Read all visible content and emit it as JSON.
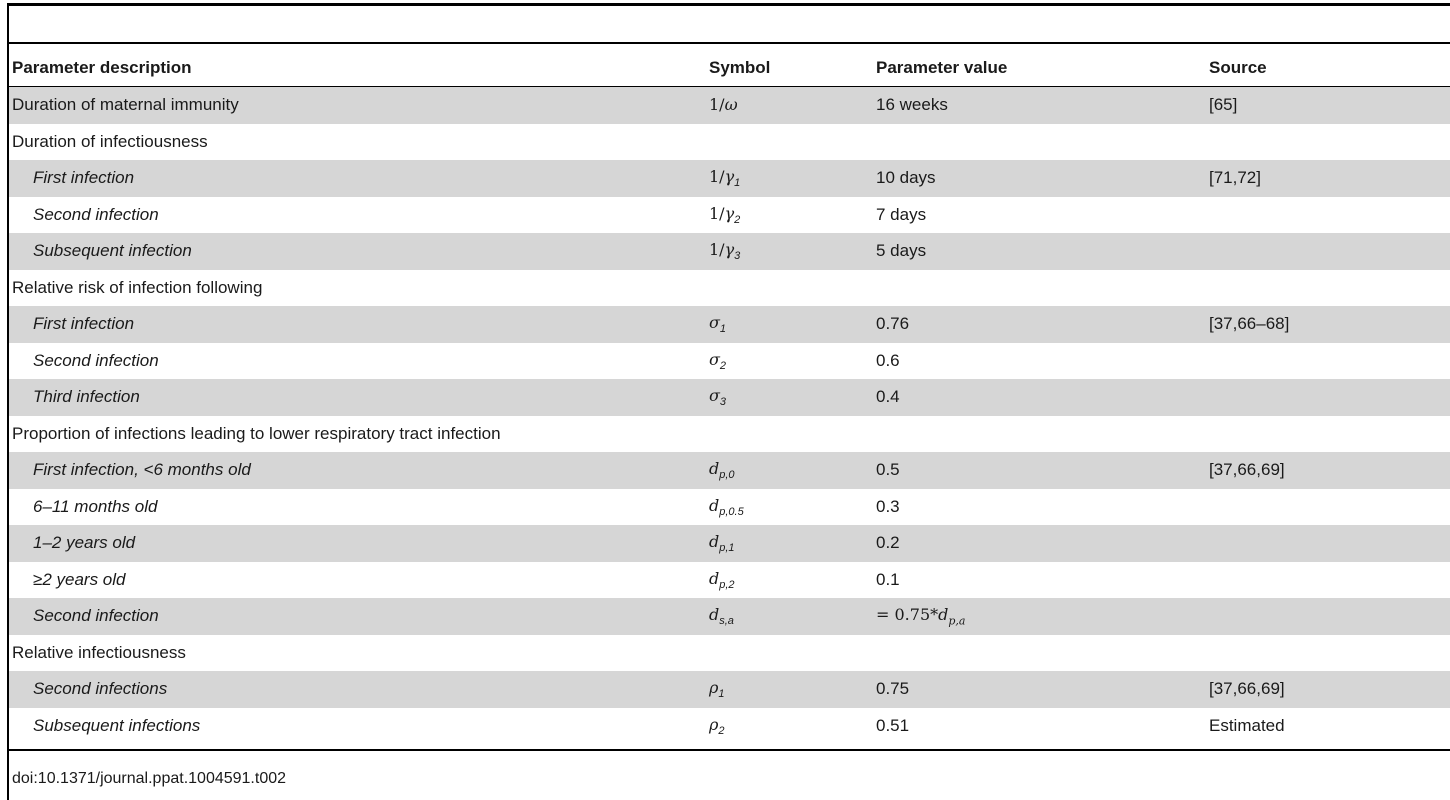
{
  "table": {
    "headers": [
      "Parameter description",
      "Symbol",
      "Parameter value",
      "Source"
    ],
    "rows": [
      {
        "description": "Duration of maternal immunity",
        "symbol_base": "ω",
        "symbol_prefix": "1/",
        "symbol_sub": "",
        "value": "16 weeks",
        "source": "[65]",
        "indent": false,
        "shaded": true
      },
      {
        "description": "Duration of infectiousness",
        "symbol_base": "",
        "symbol_prefix": "",
        "symbol_sub": "",
        "value": "",
        "source": "",
        "indent": false,
        "shaded": false
      },
      {
        "description": "First infection",
        "symbol_base": "γ",
        "symbol_prefix": "1/",
        "symbol_sub": "1",
        "value": "10 days",
        "source": "[71,72]",
        "indent": true,
        "shaded": true
      },
      {
        "description": "Second infection",
        "symbol_base": "γ",
        "symbol_prefix": "1/",
        "symbol_sub": "2",
        "value": "7 days",
        "source": "",
        "indent": true,
        "shaded": false
      },
      {
        "description": "Subsequent infection",
        "symbol_base": "γ",
        "symbol_prefix": "1/",
        "symbol_sub": "3",
        "value": "5 days",
        "source": "",
        "indent": true,
        "shaded": true
      },
      {
        "description": "Relative risk of infection following",
        "symbol_base": "",
        "symbol_prefix": "",
        "symbol_sub": "",
        "value": "",
        "source": "",
        "indent": false,
        "shaded": false
      },
      {
        "description": "First infection",
        "symbol_base": "σ",
        "symbol_prefix": "",
        "symbol_sub": "1",
        "value": "0.76",
        "source": "[37,66–68]",
        "indent": true,
        "shaded": true
      },
      {
        "description": "Second infection",
        "symbol_base": "σ",
        "symbol_prefix": "",
        "symbol_sub": "2",
        "value": "0.6",
        "source": "",
        "indent": true,
        "shaded": false
      },
      {
        "description": "Third infection",
        "symbol_base": "σ",
        "symbol_prefix": "",
        "symbol_sub": "3",
        "value": "0.4",
        "source": "",
        "indent": true,
        "shaded": true
      },
      {
        "description": "Proportion of infections leading to lower respiratory tract infection",
        "symbol_base": "",
        "symbol_prefix": "",
        "symbol_sub": "",
        "value": "",
        "source": "",
        "indent": false,
        "shaded": false
      },
      {
        "description": "First infection, <6 months old",
        "symbol_base": "d",
        "symbol_prefix": "",
        "symbol_sub": "p,0",
        "value": "0.5",
        "source": "[37,66,69]",
        "indent": true,
        "shaded": true
      },
      {
        "description": "6–11 months old",
        "symbol_base": "d",
        "symbol_prefix": "",
        "symbol_sub": "p,0.5",
        "value": "0.3",
        "source": "",
        "indent": true,
        "shaded": false
      },
      {
        "description": "1–2 years old",
        "symbol_base": "d",
        "symbol_prefix": "",
        "symbol_sub": "p,1",
        "value": "0.2",
        "source": "",
        "indent": true,
        "shaded": true
      },
      {
        "description": "≥2 years old",
        "symbol_base": "d",
        "symbol_prefix": "",
        "symbol_sub": "p,2",
        "value": "0.1",
        "source": "",
        "indent": true,
        "shaded": false
      },
      {
        "description": "Second infection",
        "symbol_base": "d",
        "symbol_prefix": "",
        "symbol_sub": "s,a",
        "value": "= 0.75*d",
        "value_sub": "p,a",
        "source": "",
        "indent": true,
        "shaded": true
      },
      {
        "description": "Relative infectiousness",
        "symbol_base": "",
        "symbol_prefix": "",
        "symbol_sub": "",
        "value": "",
        "source": "",
        "indent": false,
        "shaded": false
      },
      {
        "description": "Second infections",
        "symbol_base": "ρ",
        "symbol_prefix": "",
        "symbol_sub": "1",
        "value": "0.75",
        "source": "[37,66,69]",
        "indent": true,
        "shaded": true
      },
      {
        "description": "Subsequent infections",
        "symbol_base": "ρ",
        "symbol_prefix": "",
        "symbol_sub": "2",
        "value": "0.51",
        "source": "Estimated",
        "indent": true,
        "shaded": false
      }
    ]
  },
  "footer": {
    "doi": "doi:10.1371/journal.ppat.1004591.t002"
  }
}
